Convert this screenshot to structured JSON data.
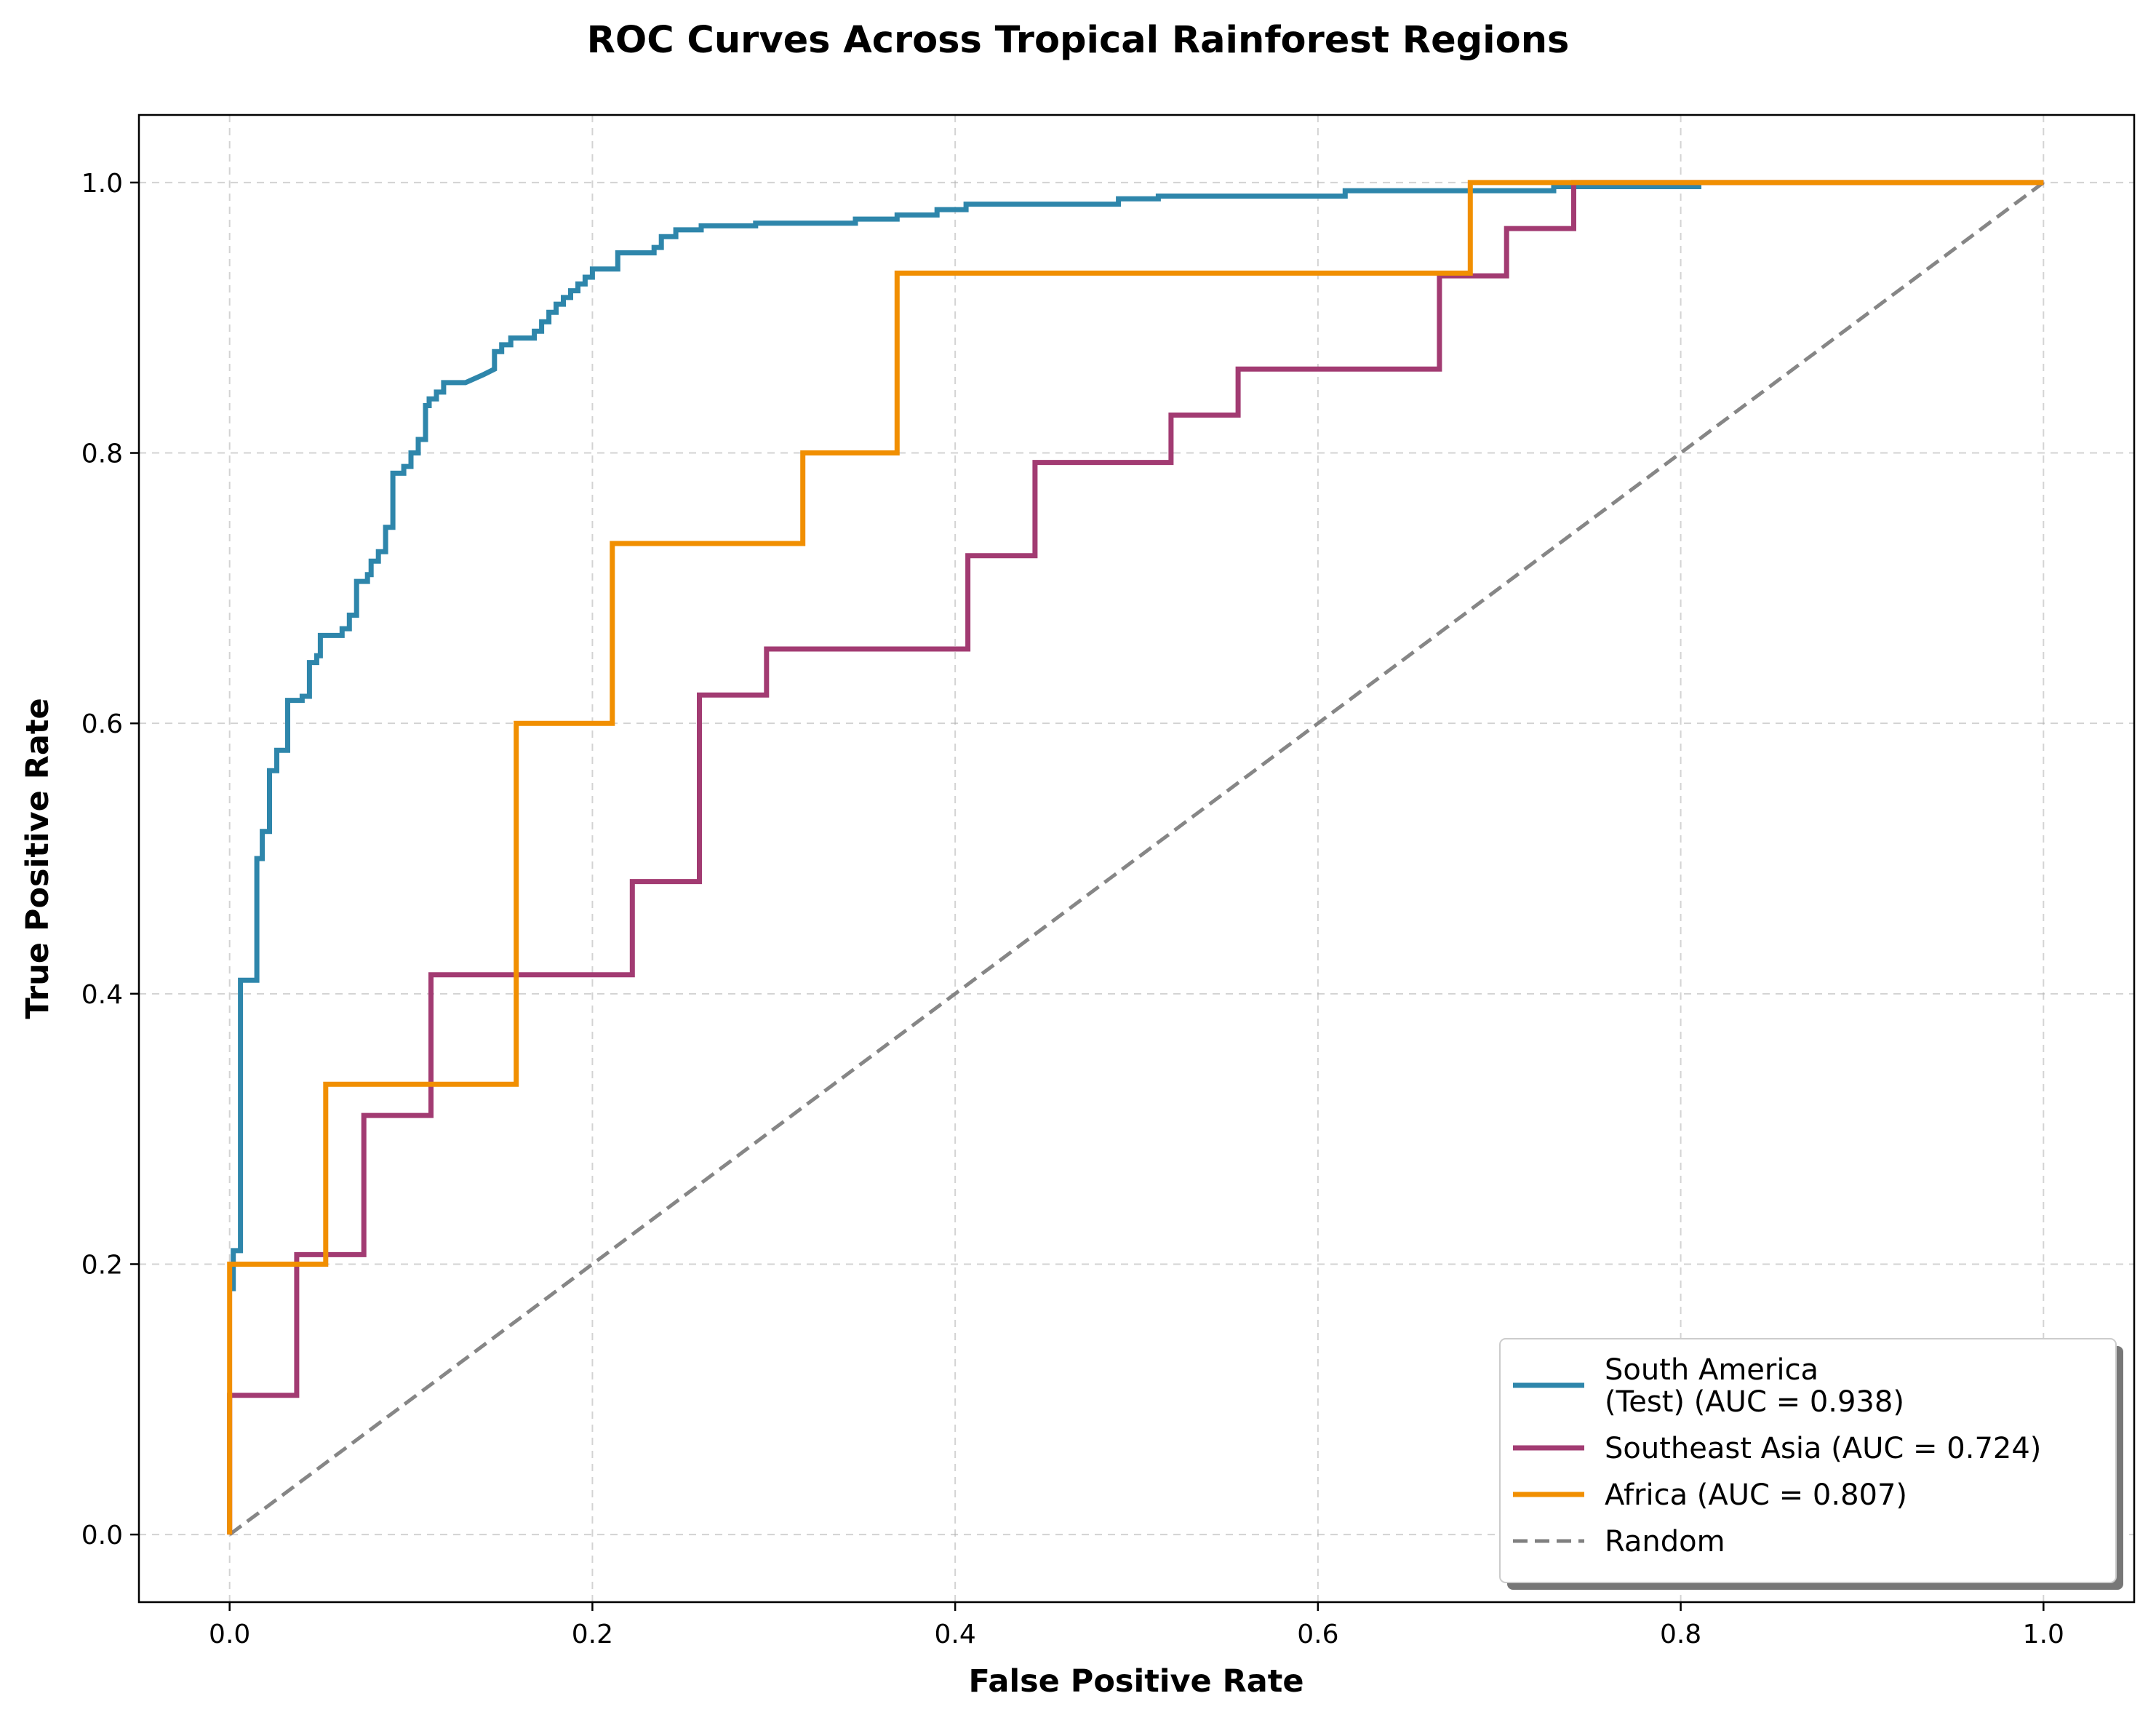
{
  "chart_data": {
    "type": "line",
    "title": "ROC Curves Across Tropical Rainforest Regions",
    "xlabel": "False Positive Rate",
    "ylabel": "True Positive Rate",
    "xlim": [
      -0.05,
      1.05
    ],
    "ylim": [
      -0.05,
      1.05
    ],
    "x_ticks": [
      0.0,
      0.2,
      0.4,
      0.6,
      0.8,
      1.0
    ],
    "y_ticks": [
      0.0,
      0.2,
      0.4,
      0.6,
      0.8,
      1.0
    ],
    "x_tick_labels": [
      "0.0",
      "0.2",
      "0.4",
      "0.6",
      "0.8",
      "1.0"
    ],
    "y_tick_labels": [
      "0.0",
      "0.2",
      "0.4",
      "0.6",
      "0.8",
      "1.0"
    ],
    "grid": true,
    "legend_position": "lower-right",
    "series": [
      {
        "name": "South America\n(Test) (AUC = 0.938)",
        "legend_lines": [
          "South America",
          "(Test) (AUC = 0.938)"
        ],
        "color": "#2e86ab",
        "style": "solid",
        "points": [
          [
            0.002,
            0.18
          ],
          [
            0.002,
            0.21
          ],
          [
            0.006,
            0.21
          ],
          [
            0.006,
            0.41
          ],
          [
            0.015,
            0.41
          ],
          [
            0.015,
            0.5
          ],
          [
            0.018,
            0.5
          ],
          [
            0.018,
            0.52
          ],
          [
            0.022,
            0.52
          ],
          [
            0.022,
            0.565
          ],
          [
            0.026,
            0.565
          ],
          [
            0.026,
            0.58
          ],
          [
            0.032,
            0.58
          ],
          [
            0.032,
            0.617
          ],
          [
            0.04,
            0.617
          ],
          [
            0.04,
            0.62
          ],
          [
            0.044,
            0.62
          ],
          [
            0.044,
            0.645
          ],
          [
            0.048,
            0.645
          ],
          [
            0.048,
            0.65
          ],
          [
            0.05,
            0.65
          ],
          [
            0.05,
            0.665
          ],
          [
            0.062,
            0.665
          ],
          [
            0.062,
            0.67
          ],
          [
            0.066,
            0.67
          ],
          [
            0.066,
            0.68
          ],
          [
            0.07,
            0.68
          ],
          [
            0.07,
            0.705
          ],
          [
            0.076,
            0.705
          ],
          [
            0.076,
            0.71
          ],
          [
            0.078,
            0.71
          ],
          [
            0.078,
            0.72
          ],
          [
            0.082,
            0.72
          ],
          [
            0.082,
            0.727
          ],
          [
            0.086,
            0.727
          ],
          [
            0.086,
            0.745
          ],
          [
            0.09,
            0.745
          ],
          [
            0.09,
            0.785
          ],
          [
            0.096,
            0.785
          ],
          [
            0.096,
            0.79
          ],
          [
            0.1,
            0.79
          ],
          [
            0.1,
            0.8
          ],
          [
            0.104,
            0.8
          ],
          [
            0.104,
            0.81
          ],
          [
            0.108,
            0.81
          ],
          [
            0.108,
            0.835
          ],
          [
            0.11,
            0.835
          ],
          [
            0.11,
            0.84
          ],
          [
            0.114,
            0.84
          ],
          [
            0.114,
            0.845
          ],
          [
            0.118,
            0.845
          ],
          [
            0.118,
            0.852
          ],
          [
            0.13,
            0.852
          ],
          [
            0.14,
            0.858
          ],
          [
            0.146,
            0.862
          ],
          [
            0.146,
            0.875
          ],
          [
            0.15,
            0.875
          ],
          [
            0.15,
            0.88
          ],
          [
            0.155,
            0.88
          ],
          [
            0.155,
            0.885
          ],
          [
            0.168,
            0.885
          ],
          [
            0.168,
            0.89
          ],
          [
            0.172,
            0.89
          ],
          [
            0.172,
            0.897
          ],
          [
            0.176,
            0.897
          ],
          [
            0.176,
            0.904
          ],
          [
            0.18,
            0.904
          ],
          [
            0.18,
            0.91
          ],
          [
            0.184,
            0.91
          ],
          [
            0.184,
            0.915
          ],
          [
            0.188,
            0.915
          ],
          [
            0.188,
            0.92
          ],
          [
            0.192,
            0.92
          ],
          [
            0.192,
            0.925
          ],
          [
            0.196,
            0.925
          ],
          [
            0.196,
            0.93
          ],
          [
            0.2,
            0.93
          ],
          [
            0.2,
            0.936
          ],
          [
            0.214,
            0.936
          ],
          [
            0.214,
            0.948
          ],
          [
            0.234,
            0.948
          ],
          [
            0.234,
            0.952
          ],
          [
            0.238,
            0.952
          ],
          [
            0.238,
            0.96
          ],
          [
            0.246,
            0.96
          ],
          [
            0.246,
            0.965
          ],
          [
            0.26,
            0.965
          ],
          [
            0.26,
            0.968
          ],
          [
            0.29,
            0.968
          ],
          [
            0.29,
            0.97
          ],
          [
            0.345,
            0.97
          ],
          [
            0.345,
            0.973
          ],
          [
            0.368,
            0.973
          ],
          [
            0.368,
            0.976
          ],
          [
            0.39,
            0.976
          ],
          [
            0.39,
            0.98
          ],
          [
            0.406,
            0.98
          ],
          [
            0.406,
            0.984
          ],
          [
            0.49,
            0.984
          ],
          [
            0.49,
            0.988
          ],
          [
            0.512,
            0.988
          ],
          [
            0.512,
            0.99
          ],
          [
            0.615,
            0.99
          ],
          [
            0.615,
            0.994
          ],
          [
            0.73,
            0.994
          ],
          [
            0.73,
            0.997
          ],
          [
            0.81,
            0.997
          ],
          [
            0.81,
            1.0
          ]
        ]
      },
      {
        "name": "Southeast Asia (AUC = 0.724)",
        "legend_lines": [
          "Southeast Asia (AUC = 0.724)"
        ],
        "color": "#a23b72",
        "style": "solid",
        "points": [
          [
            0.0,
            0.0
          ],
          [
            0.0,
            0.103
          ],
          [
            0.037,
            0.103
          ],
          [
            0.037,
            0.207
          ],
          [
            0.074,
            0.207
          ],
          [
            0.074,
            0.31
          ],
          [
            0.111,
            0.31
          ],
          [
            0.111,
            0.414
          ],
          [
            0.222,
            0.414
          ],
          [
            0.222,
            0.483
          ],
          [
            0.259,
            0.483
          ],
          [
            0.259,
            0.621
          ],
          [
            0.296,
            0.621
          ],
          [
            0.296,
            0.655
          ],
          [
            0.407,
            0.655
          ],
          [
            0.407,
            0.724
          ],
          [
            0.444,
            0.724
          ],
          [
            0.444,
            0.793
          ],
          [
            0.519,
            0.793
          ],
          [
            0.519,
            0.828
          ],
          [
            0.556,
            0.828
          ],
          [
            0.556,
            0.862
          ],
          [
            0.667,
            0.862
          ],
          [
            0.667,
            0.931
          ],
          [
            0.704,
            0.931
          ],
          [
            0.704,
            0.966
          ],
          [
            0.741,
            0.966
          ],
          [
            0.741,
            1.0
          ],
          [
            1.0,
            1.0
          ]
        ]
      },
      {
        "name": "Africa (AUC = 0.807)",
        "legend_lines": [
          "Africa (AUC = 0.807)"
        ],
        "color": "#f18f01",
        "style": "solid",
        "points": [
          [
            0.0,
            0.0
          ],
          [
            0.0,
            0.2
          ],
          [
            0.053,
            0.2
          ],
          [
            0.053,
            0.333
          ],
          [
            0.158,
            0.333
          ],
          [
            0.158,
            0.6
          ],
          [
            0.211,
            0.6
          ],
          [
            0.211,
            0.733
          ],
          [
            0.316,
            0.733
          ],
          [
            0.316,
            0.8
          ],
          [
            0.368,
            0.8
          ],
          [
            0.368,
            0.933
          ],
          [
            0.684,
            0.933
          ],
          [
            0.684,
            1.0
          ],
          [
            1.0,
            1.0
          ]
        ]
      },
      {
        "name": "Random",
        "legend_lines": [
          "Random"
        ],
        "color": "#808080",
        "style": "dashed",
        "points": [
          [
            0.0,
            0.0
          ],
          [
            1.0,
            1.0
          ]
        ]
      }
    ]
  }
}
